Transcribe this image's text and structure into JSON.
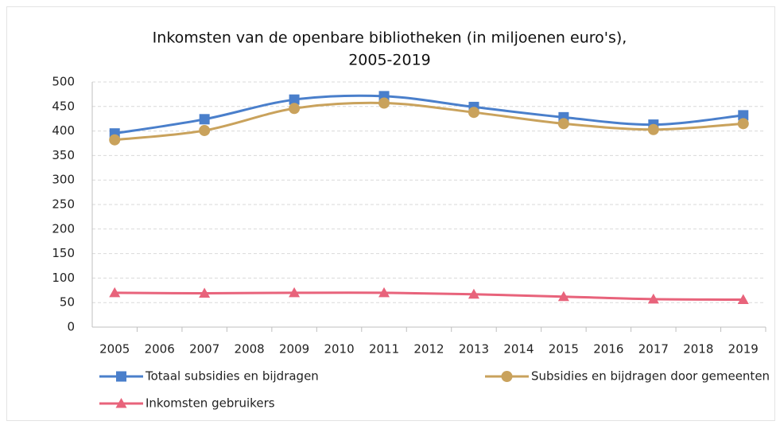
{
  "chart_data": {
    "type": "line",
    "title": [
      "Inkomsten van de openbare bibliotheken (in miljoenen euro's),",
      "2005-2019"
    ],
    "x": [
      2005,
      2007,
      2009,
      2011,
      2013,
      2015,
      2017,
      2019
    ],
    "xlim": [
      2004.5,
      2019.5
    ],
    "xticks": [
      2005,
      2006,
      2007,
      2008,
      2009,
      2010,
      2011,
      2012,
      2013,
      2014,
      2015,
      2016,
      2017,
      2018,
      2019
    ],
    "ylim": [
      0,
      500
    ],
    "yticks": [
      0,
      50,
      100,
      150,
      200,
      250,
      300,
      350,
      400,
      450,
      500
    ],
    "grid": true,
    "smooth": true,
    "legend": "bottom",
    "series": [
      {
        "name": "Totaal subsidies en bijdragen",
        "color": "#4a7fcb",
        "marker": "square",
        "values": [
          395,
          424,
          464,
          471,
          449,
          428,
          413,
          432
        ]
      },
      {
        "name": "Subsidies en bijdragen door gemeenten",
        "color": "#c9a25c",
        "marker": "circle",
        "values": [
          382,
          401,
          446,
          457,
          438,
          415,
          403,
          415
        ]
      },
      {
        "name": "Inkomsten gebruikers",
        "color": "#e8637b",
        "marker": "triangle",
        "values": [
          70,
          69,
          70,
          70,
          67,
          62,
          57,
          56
        ]
      }
    ]
  }
}
